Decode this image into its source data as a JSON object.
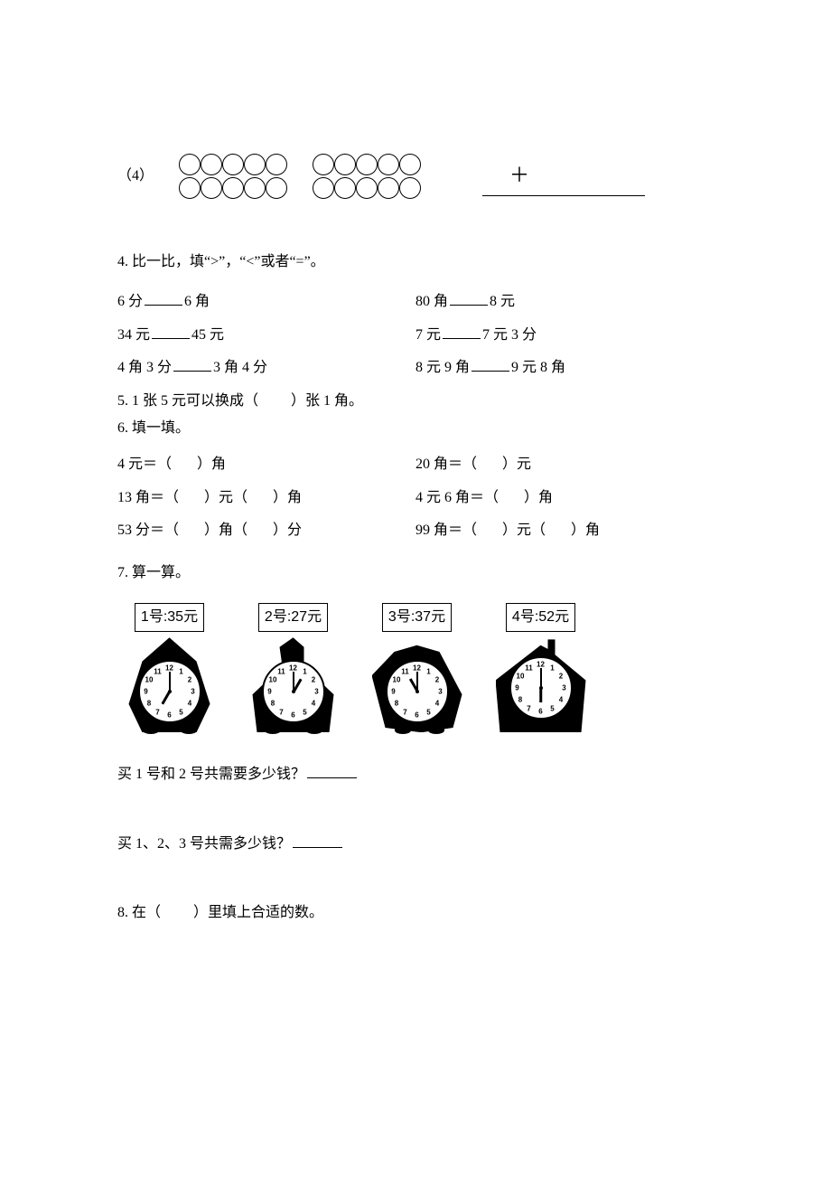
{
  "q3_4": {
    "prefix": "（4）",
    "plus": "＋"
  },
  "q4": {
    "title": "4. 比一比，填“>”，“<”或者“=”。",
    "items": [
      {
        "left": "6 分",
        "right": "6 角"
      },
      {
        "left": "80 角",
        "right": "8 元"
      },
      {
        "left": "34 元",
        "right": "45 元"
      },
      {
        "left": "7 元",
        "right": "7 元 3 分"
      },
      {
        "left": "4 角 3 分",
        "right": "3 角 4 分"
      },
      {
        "left": "8 元 9 角",
        "right": "9 元 8 角"
      }
    ]
  },
  "q5": {
    "text_a": "5. 1 张 5 元可以换成（",
    "text_b": "）张 1 角。"
  },
  "q6": {
    "title": "6. 填一填。",
    "rows": [
      {
        "a": "4 元＝（",
        "b": "）角",
        "c": "20 角＝（",
        "d": "）元"
      },
      {
        "a": "13 角＝（",
        "b": "）元（",
        "b2": "）角",
        "c": "4 元 6 角＝（",
        "d": "）角"
      },
      {
        "a": "53 分＝（",
        "b": "）角（",
        "b2": "）分",
        "c": "99 角＝（",
        "d": "）元（",
        "d2": "）角"
      }
    ]
  },
  "q7": {
    "title": "7. 算一算。",
    "products": [
      {
        "tag": "1号:35元",
        "hour_deg": 210,
        "min_deg": 0
      },
      {
        "tag": "2号:27元",
        "hour_deg": 30,
        "min_deg": 0
      },
      {
        "tag": "3号:37元",
        "hour_deg": 330,
        "min_deg": 0
      },
      {
        "tag": "4号:52元",
        "hour_deg": 180,
        "min_deg": 0
      }
    ],
    "ask1": "买 1 号和 2 号共需要多少钱？",
    "ask2": "买 1、2、3 号共需多少钱？"
  },
  "q8": {
    "title": "8. 在（",
    "title2": "）里填上合适的数。"
  },
  "clock_numbers": [
    "12",
    "1",
    "2",
    "3",
    "4",
    "5",
    "6",
    "7",
    "8",
    "9",
    "10",
    "11"
  ]
}
